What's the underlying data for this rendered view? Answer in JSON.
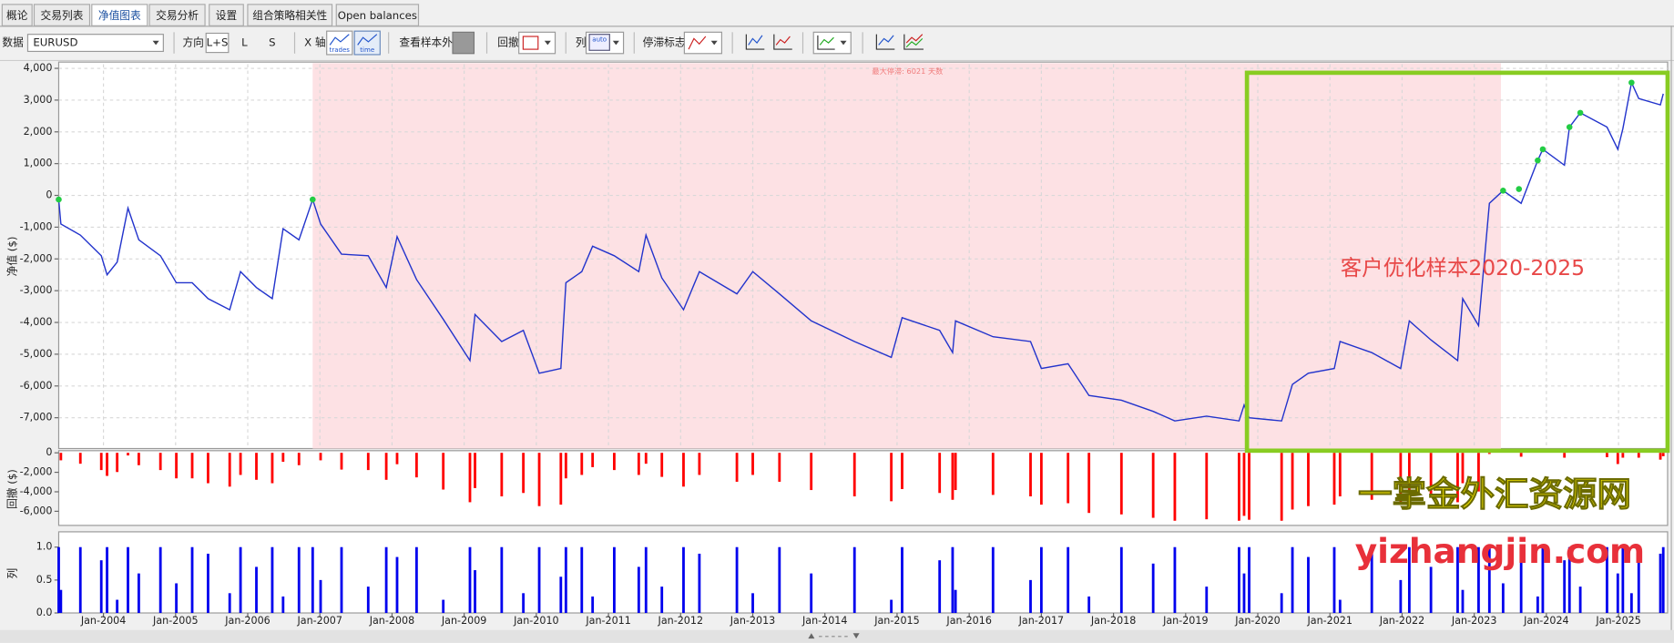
{
  "ui": {
    "tabs": [
      "概论",
      "交易列表",
      "净值图表",
      "交易分析",
      "设置",
      "组合策略相关性",
      "Open balances"
    ],
    "active_tab": 2,
    "toolbar": {
      "data_label": "数据",
      "symbol": "EURUSD",
      "direction_label": "方向",
      "direction_options": [
        "L+S",
        "L",
        "S"
      ],
      "xaxis_label": "X 轴",
      "xaxis_options": [
        "trades",
        "time"
      ],
      "oos_label": "查看样本外",
      "drawdown_label": "回撤",
      "columns_label": "列",
      "columns_option": "auto",
      "stagnation_label": "停滞标志"
    }
  },
  "watermark": [
    "一掌金外汇资源网",
    "yizhangjin.com"
  ],
  "chart_data": [
    {
      "type": "line",
      "y_label": "净值 ($)",
      "annotation": "最大停滞: 6021 天数",
      "callout": "客户优化样本2020-2025",
      "xlim": [
        2003.38,
        2025.68
      ],
      "ylim": [
        -7970,
        4130
      ],
      "grid": true,
      "shaded_xrange": [
        2006.9,
        2023.37
      ],
      "shade_color": "#fde1e4",
      "xticks": [
        2004,
        2005,
        2006,
        2007,
        2008,
        2009,
        2010,
        2011,
        2012,
        2013,
        2014,
        2015,
        2016,
        2017,
        2018,
        2019,
        2020,
        2021,
        2022,
        2023,
        2024,
        2025
      ],
      "yticks": [
        {
          "value": 4000,
          "label": "4,000"
        },
        {
          "value": 3000,
          "label": "3,000"
        },
        {
          "value": 2000,
          "label": "2,000"
        },
        {
          "value": 1000,
          "label": "1,000"
        },
        0,
        {
          "value": -1000,
          "label": "-1,000"
        },
        {
          "value": -2000,
          "label": "-2,000"
        },
        {
          "value": -3000,
          "label": "-3,000"
        },
        {
          "value": -4000,
          "label": "-4,000"
        },
        {
          "value": -5000,
          "label": "-5,000"
        },
        {
          "value": -6000,
          "label": "-6,000"
        },
        {
          "value": -7000,
          "label": "-7,000"
        }
      ],
      "x": [
        2003.38,
        2003.41,
        2003.68,
        2003.97,
        2004.05,
        2004.19,
        2004.34,
        2004.49,
        2004.79,
        2005.01,
        2005.23,
        2005.45,
        2005.75,
        2005.9,
        2006.12,
        2006.34,
        2006.49,
        2006.71,
        2006.9,
        2007.01,
        2007.3,
        2007.67,
        2007.92,
        2008.07,
        2008.34,
        2008.71,
        2009.08,
        2009.15,
        2009.52,
        2009.82,
        2010.04,
        2010.34,
        2010.41,
        2010.63,
        2010.78,
        2011.08,
        2011.42,
        2011.52,
        2011.74,
        2012.04,
        2012.26,
        2012.78,
        2013.0,
        2013.37,
        2013.81,
        2014.41,
        2014.92,
        2015.07,
        2015.59,
        2015.77,
        2015.81,
        2016.33,
        2016.85,
        2017.0,
        2017.37,
        2017.66,
        2018.11,
        2018.55,
        2018.85,
        2019.29,
        2019.74,
        2019.81,
        2019.88,
        2020.33,
        2020.48,
        2020.7,
        2021.06,
        2021.14,
        2021.58,
        2021.98,
        2022.1,
        2022.4,
        2022.77,
        2022.84,
        2023.06,
        2023.21,
        2023.4,
        2023.65,
        2023.88,
        2023.95,
        2024.25,
        2024.32,
        2024.47,
        2024.84,
        2024.99,
        2025.06,
        2025.18,
        2025.28,
        2025.58,
        2025.62
      ],
      "series": [
        {
          "color": "#2233cc",
          "values": [
            -130,
            -900,
            -1250,
            -1900,
            -2500,
            -2100,
            -400,
            -1400,
            -1900,
            -2750,
            -2750,
            -3250,
            -3600,
            -2400,
            -2900,
            -3250,
            -1050,
            -1400,
            -130,
            -900,
            -1850,
            -1900,
            -2900,
            -1300,
            -2650,
            -3900,
            -5200,
            -3750,
            -4600,
            -4250,
            -5600,
            -5450,
            -2750,
            -2400,
            -1600,
            -1900,
            -2400,
            -1250,
            -2600,
            -3600,
            -2400,
            -3100,
            -2400,
            -3100,
            -3950,
            -4600,
            -5100,
            -3850,
            -4250,
            -4950,
            -3950,
            -4450,
            -4600,
            -5450,
            -5300,
            -6300,
            -6450,
            -6800,
            -7100,
            -6950,
            -7100,
            -6600,
            -7000,
            -7100,
            -5950,
            -5600,
            -5450,
            -4600,
            -4950,
            -5450,
            -3950,
            -4550,
            -5200,
            -3250,
            -4100,
            -250,
            150,
            -250,
            1100,
            1450,
            950,
            2150,
            2600,
            2150,
            1450,
            2100,
            3550,
            3050,
            2850,
            3200
          ]
        }
      ],
      "markers": {
        "color": "#22cc44",
        "x": [
          2003.38,
          2006.9,
          2023.4,
          2023.62,
          2023.88,
          2023.95,
          2024.32,
          2024.47,
          2025.18
        ],
        "values": [
          -130,
          -130,
          150,
          200,
          1100,
          1450,
          2150,
          2600,
          3550
        ]
      }
    },
    {
      "type": "bar",
      "y_label": "回撤 ($)",
      "color": "#ff0000",
      "xlim": [
        2003.38,
        2025.68
      ],
      "ylim": [
        -7450,
        0
      ],
      "yticks": [
        0,
        {
          "value": -2000,
          "label": "-2,000"
        },
        {
          "value": -4000,
          "label": "-4,000"
        },
        {
          "value": -6000,
          "label": "-6,000"
        }
      ],
      "x": [
        2003.38,
        2003.41,
        2003.68,
        2003.97,
        2004.05,
        2004.19,
        2004.34,
        2004.49,
        2004.79,
        2005.01,
        2005.23,
        2005.45,
        2005.75,
        2005.9,
        2006.12,
        2006.34,
        2006.49,
        2006.71,
        2006.9,
        2007.01,
        2007.3,
        2007.67,
        2007.92,
        2008.07,
        2008.34,
        2008.71,
        2009.08,
        2009.15,
        2009.52,
        2009.82,
        2010.04,
        2010.34,
        2010.41,
        2010.63,
        2010.78,
        2011.08,
        2011.42,
        2011.52,
        2011.74,
        2012.04,
        2012.26,
        2012.78,
        2013.0,
        2013.37,
        2013.81,
        2014.41,
        2014.92,
        2015.07,
        2015.59,
        2015.77,
        2015.81,
        2016.33,
        2016.85,
        2017.0,
        2017.37,
        2017.66,
        2018.11,
        2018.55,
        2018.85,
        2019.29,
        2019.74,
        2019.81,
        2019.88,
        2020.33,
        2020.48,
        2020.7,
        2021.06,
        2021.14,
        2021.58,
        2021.98,
        2022.1,
        2022.4,
        2022.77,
        2022.84,
        2023.06,
        2023.21,
        2023.4,
        2023.65,
        2023.88,
        2023.95,
        2024.25,
        2024.32,
        2024.47,
        2024.84,
        2024.99,
        2025.06,
        2025.18,
        2025.28,
        2025.58,
        2025.62
      ],
      "values": [
        0,
        -770,
        -1120,
        -1770,
        -2370,
        -1970,
        -270,
        -1270,
        -1770,
        -2620,
        -2620,
        -3120,
        -3470,
        -2270,
        -2770,
        -3120,
        -920,
        -1270,
        0,
        -770,
        -1720,
        -1770,
        -2770,
        -1170,
        -2520,
        -3770,
        -5070,
        -3620,
        -4470,
        -4120,
        -5470,
        -5320,
        -2620,
        -2270,
        -1470,
        -1770,
        -2270,
        -1120,
        -2470,
        -3470,
        -2270,
        -2970,
        -2270,
        -2970,
        -3820,
        -4470,
        -4970,
        -3720,
        -4120,
        -4820,
        -3820,
        -4320,
        -4470,
        -5320,
        -5170,
        -6170,
        -6320,
        -6670,
        -6970,
        -6820,
        -6970,
        -6470,
        -6870,
        -6970,
        -5820,
        -5470,
        -5320,
        -4470,
        -4820,
        -5320,
        -3820,
        -4420,
        -5070,
        -3120,
        -3970,
        -120,
        0,
        -400,
        0,
        0,
        -500,
        0,
        0,
        -450,
        -1150,
        -500,
        0,
        -500,
        -700,
        -350
      ]
    },
    {
      "type": "bar",
      "y_label": "列",
      "color": "#0000ee",
      "xlim": [
        2003.38,
        2025.68
      ],
      "ylim": [
        0,
        1.2
      ],
      "yticks": [
        {
          "value": 1,
          "label": "1.0"
        },
        {
          "value": 0.5,
          "label": "0.5"
        },
        {
          "value": 0,
          "label": "0.0"
        }
      ],
      "xticks": [
        {
          "value": 2004,
          "label": "Jan-2004"
        },
        {
          "value": 2005,
          "label": "Jan-2005"
        },
        {
          "value": 2006,
          "label": "Jan-2006"
        },
        {
          "value": 2007,
          "label": "Jan-2007"
        },
        {
          "value": 2008,
          "label": "Jan-2008"
        },
        {
          "value": 2009,
          "label": "Jan-2009"
        },
        {
          "value": 2010,
          "label": "Jan-2010"
        },
        {
          "value": 2011,
          "label": "Jan-2011"
        },
        {
          "value": 2012,
          "label": "Jan-2012"
        },
        {
          "value": 2013,
          "label": "Jan-2013"
        },
        {
          "value": 2014,
          "label": "Jan-2014"
        },
        {
          "value": 2015,
          "label": "Jan-2015"
        },
        {
          "value": 2016,
          "label": "Jan-2016"
        },
        {
          "value": 2017,
          "label": "Jan-2017"
        },
        {
          "value": 2018,
          "label": "Jan-2018"
        },
        {
          "value": 2019,
          "label": "Jan-2019"
        },
        {
          "value": 2020,
          "label": "Jan-2020"
        },
        {
          "value": 2021,
          "label": "Jan-2021"
        },
        {
          "value": 2022,
          "label": "Jan-2022"
        },
        {
          "value": 2023,
          "label": "Jan-2023"
        },
        {
          "value": 2024,
          "label": "Jan-2024"
        },
        {
          "value": 2025,
          "label": "Jan-2025"
        }
      ],
      "x": [
        2003.38,
        2003.41,
        2003.68,
        2003.97,
        2004.05,
        2004.19,
        2004.34,
        2004.49,
        2004.79,
        2005.01,
        2005.23,
        2005.45,
        2005.75,
        2005.9,
        2006.12,
        2006.34,
        2006.49,
        2006.71,
        2006.9,
        2007.01,
        2007.3,
        2007.67,
        2007.92,
        2008.07,
        2008.34,
        2008.71,
        2009.08,
        2009.15,
        2009.52,
        2009.82,
        2010.04,
        2010.34,
        2010.41,
        2010.63,
        2010.78,
        2011.08,
        2011.42,
        2011.52,
        2011.74,
        2012.04,
        2012.26,
        2012.78,
        2013.0,
        2013.37,
        2013.81,
        2014.41,
        2014.92,
        2015.07,
        2015.59,
        2015.77,
        2015.81,
        2016.33,
        2016.85,
        2017.0,
        2017.37,
        2017.66,
        2018.11,
        2018.55,
        2018.85,
        2019.29,
        2019.74,
        2019.81,
        2019.88,
        2020.33,
        2020.48,
        2020.7,
        2021.06,
        2021.14,
        2021.58,
        2021.98,
        2022.1,
        2022.4,
        2022.77,
        2022.84,
        2023.06,
        2023.21,
        2023.4,
        2023.65,
        2023.88,
        2023.95,
        2024.25,
        2024.32,
        2024.47,
        2024.84,
        2024.99,
        2025.06,
        2025.18,
        2025.28,
        2025.58,
        2025.62
      ],
      "values": [
        1,
        0.35,
        1,
        0.8,
        1,
        0.2,
        1,
        0.6,
        1,
        0.45,
        1,
        0.9,
        0.3,
        1,
        0.7,
        1,
        0.25,
        1,
        1,
        0.5,
        1,
        0.4,
        1,
        0.85,
        1,
        0.2,
        1,
        0.65,
        1,
        0.3,
        1,
        0.55,
        1,
        1,
        0.25,
        1,
        0.7,
        1,
        0.4,
        1,
        0.9,
        1,
        0.3,
        1,
        0.6,
        1,
        0.2,
        1,
        0.8,
        1,
        0.35,
        1,
        0.5,
        1,
        1,
        0.25,
        1,
        0.75,
        1,
        0.4,
        1,
        0.6,
        1,
        0.3,
        1,
        0.85,
        1,
        0.2,
        1,
        0.5,
        1,
        0.7,
        1,
        0.35,
        1,
        1,
        0.45,
        1,
        0.25,
        1,
        0.8,
        1,
        0.4,
        1,
        0.6,
        1,
        0.3,
        1,
        0.9,
        1
      ]
    }
  ]
}
